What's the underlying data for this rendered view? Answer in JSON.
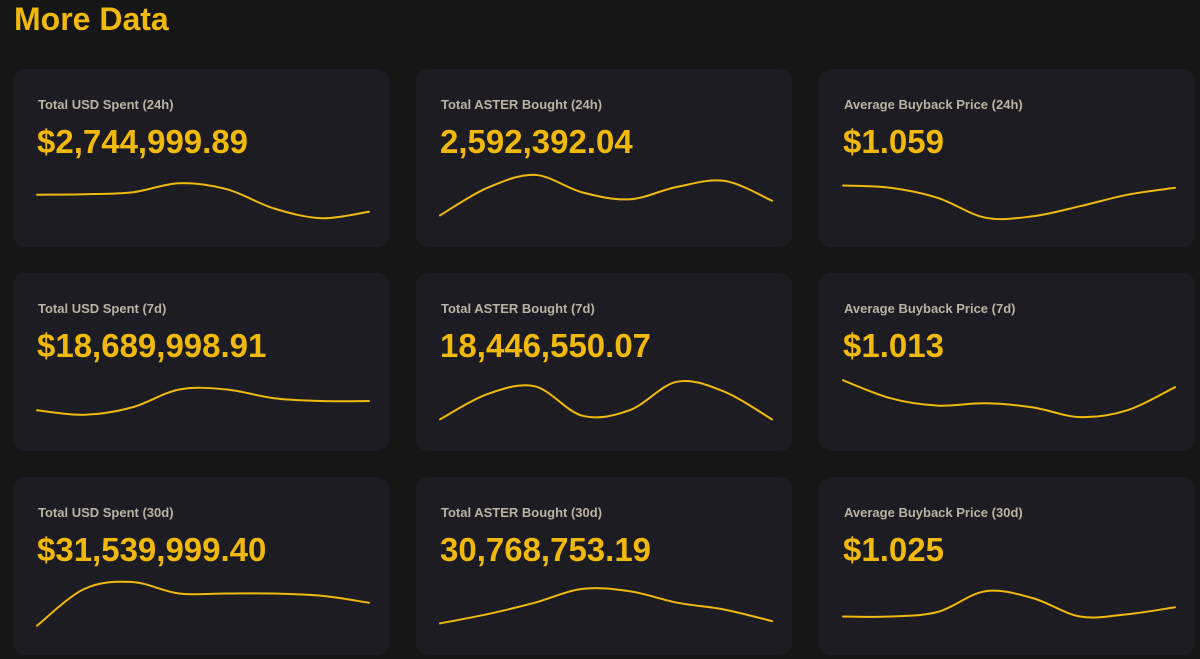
{
  "page": {
    "title": "More Data"
  },
  "accent_color": "#f0b90b",
  "cards": [
    {
      "label": "Total USD Spent (24h)",
      "value": "$2,744,999.89",
      "trend": [
        0.55,
        0.56,
        0.6,
        0.8,
        0.67,
        0.25,
        0.04,
        0.18
      ]
    },
    {
      "label": "Total ASTER Bought (24h)",
      "value": "2,592,392.04",
      "trend": [
        0.1,
        0.7,
        0.98,
        0.6,
        0.45,
        0.72,
        0.85,
        0.42
      ]
    },
    {
      "label": "Average Buyback Price (24h)",
      "value": "$1.059",
      "trend": [
        0.75,
        0.7,
        0.48,
        0.05,
        0.08,
        0.3,
        0.55,
        0.7
      ]
    },
    {
      "label": "Total USD Spent (7d)",
      "value": "$18,689,998.91",
      "trend": [
        0.3,
        0.2,
        0.36,
        0.75,
        0.75,
        0.56,
        0.5,
        0.5
      ]
    },
    {
      "label": "Total ASTER Bought (7d)",
      "value": "18,446,550.07",
      "trend": [
        0.1,
        0.65,
        0.82,
        0.18,
        0.3,
        0.92,
        0.7,
        0.1
      ]
    },
    {
      "label": "Average Buyback Price (7d)",
      "value": "$1.013",
      "trend": [
        0.95,
        0.56,
        0.4,
        0.45,
        0.36,
        0.15,
        0.3,
        0.8
      ]
    },
    {
      "label": "Total USD Spent (30d)",
      "value": "$31,539,999.40",
      "trend": [
        0.05,
        0.85,
        1.0,
        0.75,
        0.75,
        0.75,
        0.7,
        0.55
      ]
    },
    {
      "label": "Total ASTER Bought (30d)",
      "value": "30,768,753.19",
      "trend": [
        0.1,
        0.3,
        0.55,
        0.85,
        0.8,
        0.55,
        0.4,
        0.15
      ]
    },
    {
      "label": "Average Buyback Price (30d)",
      "value": "$1.025",
      "trend": [
        0.25,
        0.25,
        0.35,
        0.8,
        0.65,
        0.25,
        0.3,
        0.45
      ]
    }
  ]
}
